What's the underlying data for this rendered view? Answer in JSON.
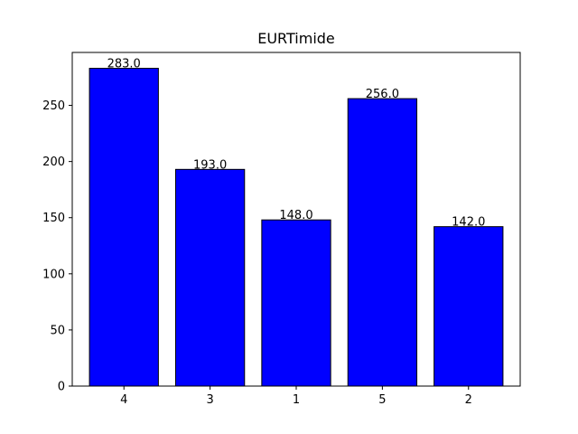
{
  "chart_data": {
    "type": "bar",
    "title": "EURTimide",
    "xlabel": "",
    "ylabel": "",
    "categories": [
      "4",
      "3",
      "1",
      "5",
      "2"
    ],
    "values": [
      283.0,
      193.0,
      148.0,
      256.0,
      142.0
    ],
    "value_labels": [
      "283.0",
      "193.0",
      "148.0",
      "256.0",
      "142.0"
    ],
    "ylim": [
      0,
      297.15
    ],
    "yticks": [
      0,
      50,
      100,
      150,
      200,
      250
    ],
    "ytick_labels": [
      "0",
      "50",
      "100",
      "150",
      "200",
      "250"
    ],
    "grid": false,
    "bar_color": "#0000ff",
    "edge_color": "#000000"
  }
}
